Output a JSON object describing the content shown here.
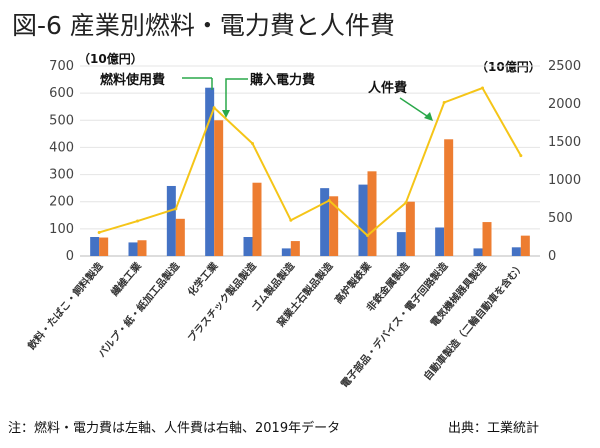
{
  "chart_data": {
    "type": "bar",
    "title": "図-6 産業別燃料・電力費と人件費",
    "left_axis_unit": "（10億円）",
    "right_axis_unit": "（10億円）",
    "left_ylim": [
      0,
      700
    ],
    "left_ticks": [
      "0",
      "100",
      "200",
      "300",
      "400",
      "500",
      "600",
      "700"
    ],
    "right_ylim": [
      0,
      2500
    ],
    "right_ticks": [
      "0",
      "500",
      "1000",
      "1500",
      "2000",
      "2500"
    ],
    "categories": [
      "飲料・たばこ・飼料製造",
      "繊維工業",
      "パルプ・紙・紙加工品製造",
      "化学工業",
      "プラスチック製品製造",
      "ゴム製品製造",
      "窯業土石製品製造",
      "高炉製鉄業",
      "非鉄金属製造",
      "電子部品・デバイス・電子回路製造",
      "電気機械器具製造",
      "自動車製造（二輪自動車を含む）"
    ],
    "series": [
      {
        "name": "燃料使用費",
        "axis": "left",
        "kind": "bar",
        "color": "#4472C4",
        "values": [
          70,
          50,
          258,
          620,
          70,
          28,
          250,
          263,
          88,
          105,
          28,
          32
        ]
      },
      {
        "name": "購入電力費",
        "axis": "left",
        "kind": "bar",
        "color": "#ED7D31",
        "values": [
          68,
          58,
          137,
          500,
          270,
          55,
          220,
          312,
          200,
          430,
          125,
          75
        ]
      },
      {
        "name": "人件費",
        "axis": "right",
        "kind": "line",
        "color": "#F5C518",
        "values": [
          310,
          460,
          620,
          1950,
          1480,
          470,
          730,
          270,
          700,
          2020,
          2210,
          1320
        ]
      }
    ],
    "annotations": {
      "fuel": "燃料使用費",
      "electricity": "購入電力費",
      "labor": "人件費"
    }
  },
  "footer": {
    "note": "注：燃料・電力費は左軸、人件費は右軸、2019年データ",
    "source": "出典：工業統計"
  }
}
